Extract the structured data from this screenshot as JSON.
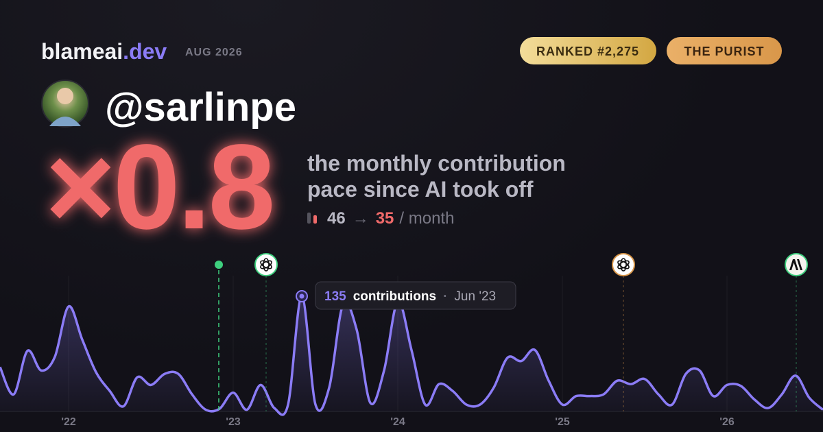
{
  "header": {
    "brand": "blameai",
    "brand_tld": ".dev",
    "period": "AUG 2026",
    "badges": [
      "RANKED #2,275",
      "THE PURIST"
    ]
  },
  "profile": {
    "handle": "@sarlinpe"
  },
  "stat": {
    "multiplier": "×0.8",
    "description": [
      "the monthly contribution",
      "pace since AI took off"
    ],
    "before": 46,
    "arrow": "→",
    "after": 35,
    "unit": "/ month"
  },
  "chart_data": {
    "type": "area",
    "color": "#8b7cf6",
    "categories": [
      null,
      null,
      null,
      null,
      null,
      "'22",
      null,
      null,
      null,
      null,
      null,
      null,
      null,
      null,
      null,
      null,
      null,
      "'23",
      null,
      null,
      null,
      null,
      null,
      null,
      null,
      null,
      null,
      null,
      null,
      "'24",
      null,
      null,
      null,
      null,
      null,
      null,
      null,
      null,
      null,
      null,
      null,
      "'25",
      null,
      null,
      null,
      null,
      null,
      null,
      null,
      null,
      null,
      null,
      null,
      "'26",
      null,
      null,
      null,
      null,
      null,
      null,
      null
    ],
    "values": [
      52,
      20,
      71,
      48,
      64,
      123,
      84,
      46,
      24,
      6,
      40,
      31,
      44,
      44,
      20,
      2,
      3,
      22,
      2,
      31,
      4,
      8,
      135,
      8,
      28,
      125,
      96,
      10,
      48,
      129,
      72,
      8,
      32,
      24,
      8,
      8,
      28,
      63,
      59,
      72,
      36,
      8,
      18,
      18,
      20,
      36,
      32,
      38,
      20,
      8,
      44,
      48,
      18,
      31,
      30,
      14,
      4,
      20,
      42,
      16,
      2
    ],
    "ylim": [
      0,
      150
    ],
    "grid": true,
    "tooltip": {
      "value": 135,
      "label": "contributions",
      "date": "Jun '23"
    }
  }
}
